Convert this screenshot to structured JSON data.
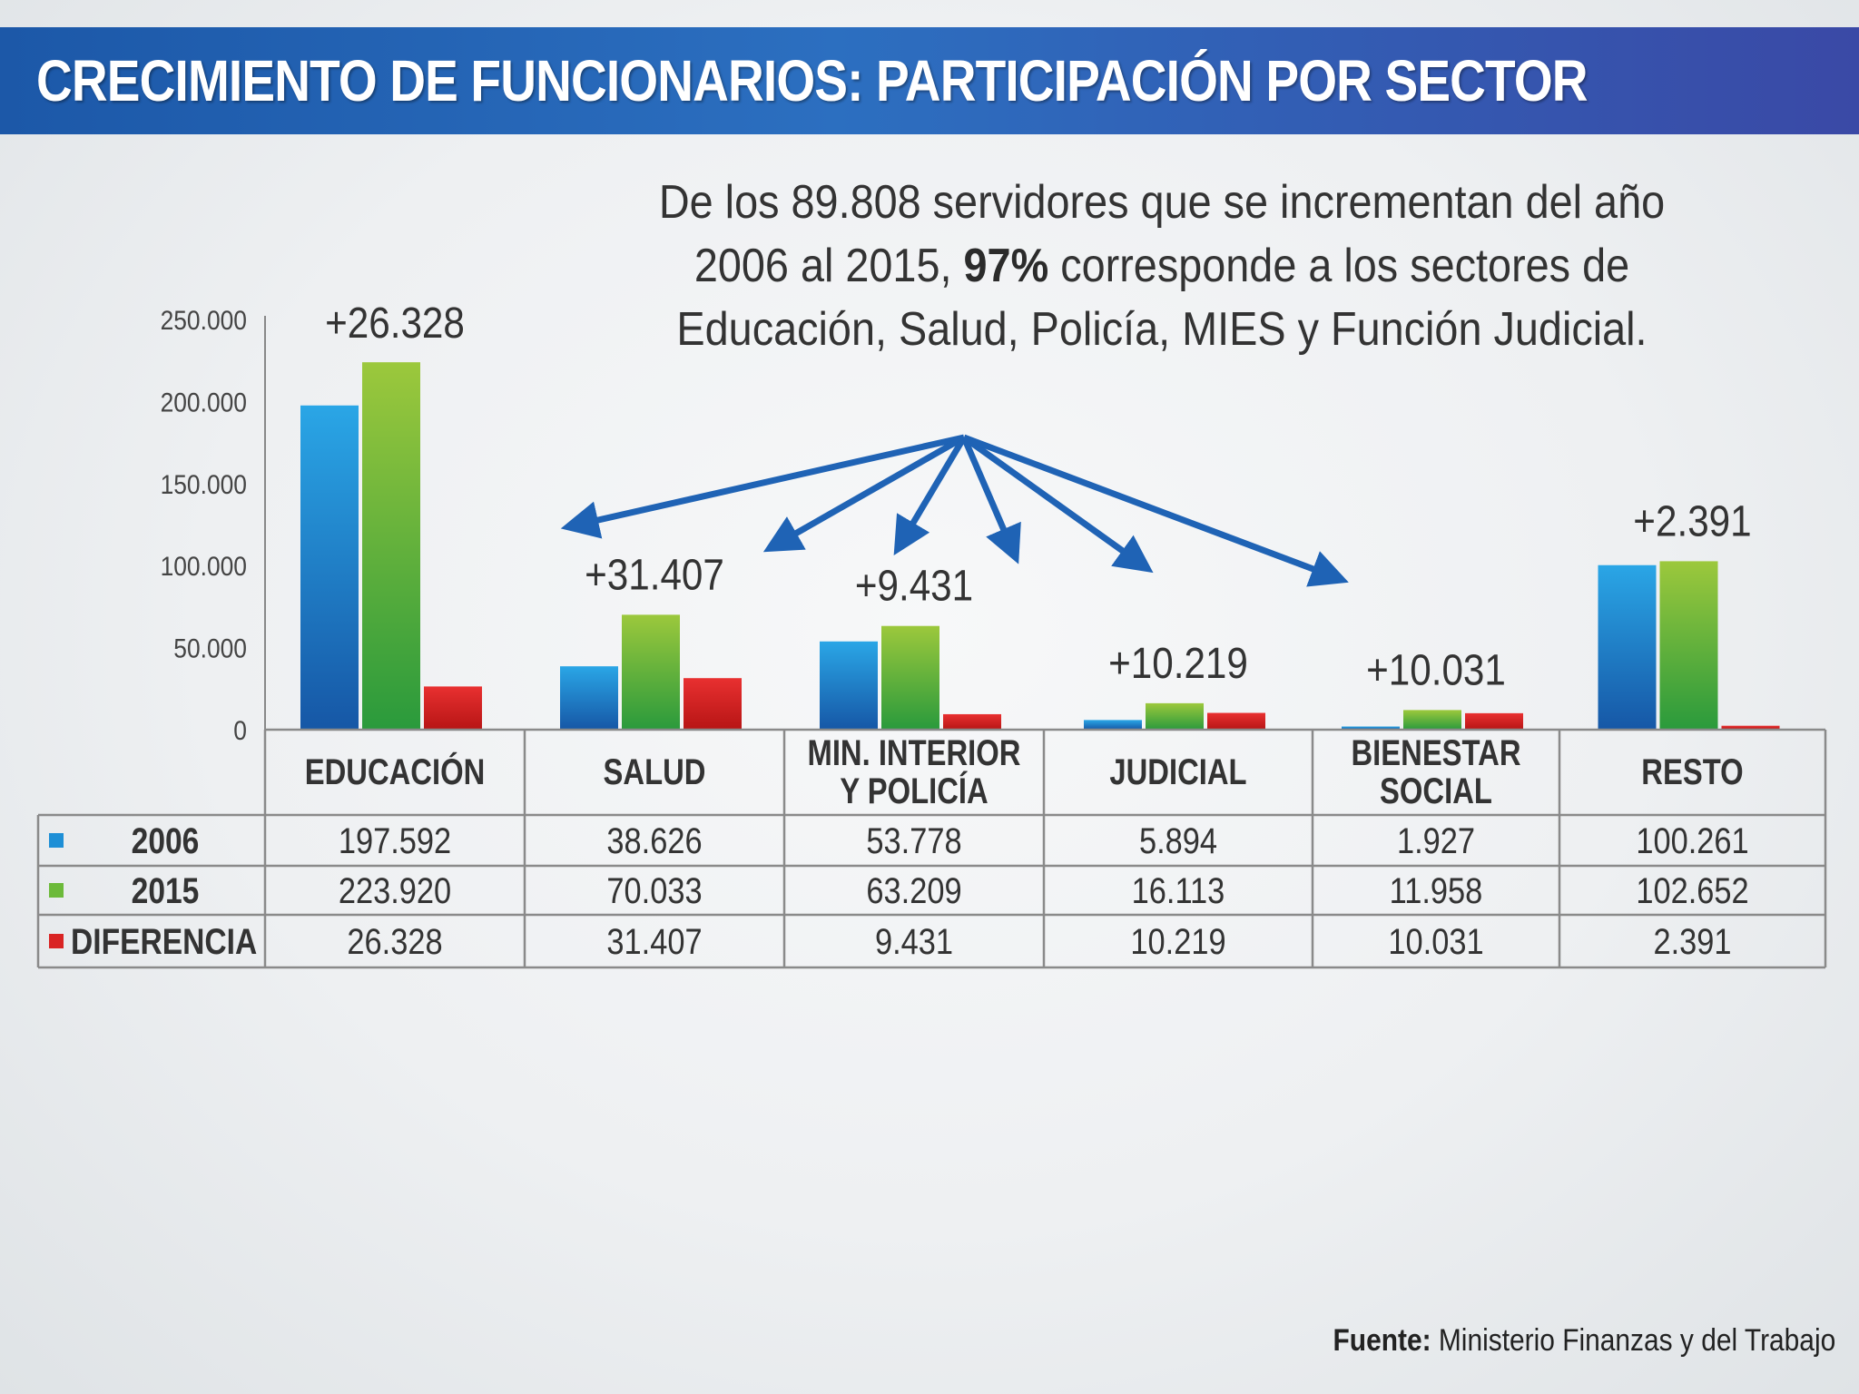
{
  "header": {
    "title": "CRECIMIENTO DE FUNCIONARIOS: PARTICIPACIÓN POR SECTOR"
  },
  "subtitle": {
    "before": "De los 89.808 servidores que se incrementan del año 2006 al 2015,",
    "highlight": "97%",
    "after": "corresponde a los sectores de Educación, Salud, Policía, MIES y Función Judicial."
  },
  "source": {
    "label": "Fuente:",
    "text": "Ministerio Finanzas y del Trabajo"
  },
  "colors": {
    "series_2006": "#1e8fd6",
    "series_2015": "#6cba3a",
    "series_diferencia": "#d92424",
    "arrows": "#1f63b5",
    "banner": "#2563b0"
  },
  "chart_data": {
    "type": "bar",
    "categories": [
      "EDUCACIÓN",
      "SALUD",
      "MIN. INTERIOR Y POLICÍA",
      "JUDICIAL",
      "BIENESTAR SOCIAL",
      "RESTO"
    ],
    "category_lines": [
      [
        "EDUCACIÓN"
      ],
      [
        "SALUD"
      ],
      [
        "MIN. INTERIOR",
        "Y POLICÍA"
      ],
      [
        "JUDICIAL"
      ],
      [
        "BIENESTAR",
        "SOCIAL"
      ],
      [
        "RESTO"
      ]
    ],
    "series": [
      {
        "name": "2006",
        "values": [
          197592,
          38626,
          53778,
          5894,
          1927,
          100261
        ],
        "labels": [
          "197.592",
          "38.626",
          "53.778",
          "5.894",
          "1.927",
          "100.261"
        ]
      },
      {
        "name": "2015",
        "values": [
          223920,
          70033,
          63209,
          16113,
          11958,
          102652
        ],
        "labels": [
          "223.920",
          "70.033",
          "63.209",
          "16.113",
          "11.958",
          "102.652"
        ]
      },
      {
        "name": "DIFERENCIA",
        "values": [
          26328,
          31407,
          9431,
          10219,
          10031,
          2391
        ],
        "labels": [
          "26.328",
          "31.407",
          "9.431",
          "10.219",
          "10.031",
          "2.391"
        ]
      }
    ],
    "data_labels": [
      "+26.328",
      "+31.407",
      "+9.431",
      "+10.219",
      "+10.031",
      "+2.391"
    ],
    "yticks": [
      "0",
      "50.000",
      "100.000",
      "150.000",
      "200.000",
      "250.000"
    ],
    "ylim": [
      0,
      250000
    ],
    "grid": false,
    "legend": "table-below"
  }
}
